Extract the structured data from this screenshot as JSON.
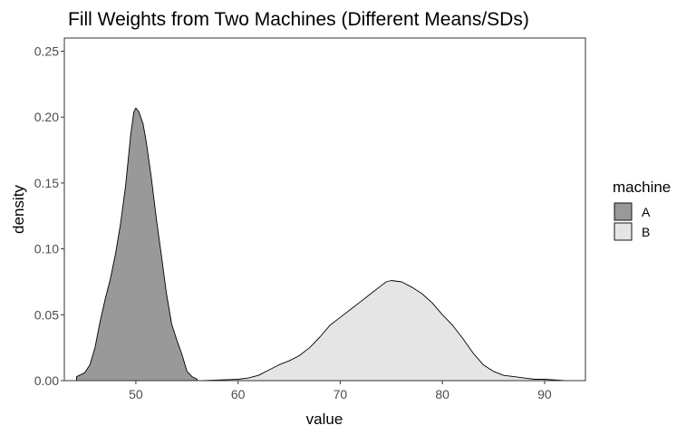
{
  "chart_data": {
    "type": "area",
    "title": "Fill Weights from Two Machines (Different Means/SDs)",
    "xlabel": "value",
    "ylabel": "density",
    "xlim": [
      43.0,
      94.0
    ],
    "ylim": [
      0.0,
      0.26
    ],
    "x_ticks": [
      50,
      60,
      70,
      80,
      90
    ],
    "x_tick_labels": [
      "50",
      "60",
      "70",
      "80",
      "90"
    ],
    "y_ticks": [
      0.0,
      0.05,
      0.1,
      0.15,
      0.2,
      0.25
    ],
    "y_tick_labels": [
      "0.00",
      "0.05",
      "0.10",
      "0.15",
      "0.20",
      "0.25"
    ],
    "grid": false,
    "legend": {
      "title": "machine",
      "position": "right"
    },
    "series": [
      {
        "name": "A",
        "fill": "#999999",
        "points": [
          [
            44.2,
            0.003
          ],
          [
            45.0,
            0.006
          ],
          [
            45.5,
            0.012
          ],
          [
            46.0,
            0.025
          ],
          [
            46.5,
            0.045
          ],
          [
            47.0,
            0.062
          ],
          [
            47.5,
            0.077
          ],
          [
            48.0,
            0.096
          ],
          [
            48.5,
            0.119
          ],
          [
            49.0,
            0.148
          ],
          [
            49.5,
            0.187
          ],
          [
            49.8,
            0.204
          ],
          [
            50.0,
            0.207
          ],
          [
            50.3,
            0.204
          ],
          [
            50.7,
            0.195
          ],
          [
            51.0,
            0.182
          ],
          [
            51.5,
            0.155
          ],
          [
            52.0,
            0.123
          ],
          [
            52.5,
            0.095
          ],
          [
            53.0,
            0.066
          ],
          [
            53.5,
            0.043
          ],
          [
            54.0,
            0.031
          ],
          [
            54.5,
            0.02
          ],
          [
            55.0,
            0.007
          ],
          [
            55.5,
            0.003
          ],
          [
            56.0,
            0.001
          ]
        ]
      },
      {
        "name": "B",
        "fill": "#e5e5e5",
        "points": [
          [
            56.5,
            0.0
          ],
          [
            58.0,
            0.0005
          ],
          [
            60.0,
            0.001
          ],
          [
            61.0,
            0.002
          ],
          [
            62.0,
            0.004
          ],
          [
            63.0,
            0.008
          ],
          [
            64.0,
            0.012
          ],
          [
            65.0,
            0.015
          ],
          [
            66.0,
            0.019
          ],
          [
            67.0,
            0.025
          ],
          [
            68.0,
            0.033
          ],
          [
            69.0,
            0.042
          ],
          [
            70.0,
            0.048
          ],
          [
            71.0,
            0.054
          ],
          [
            72.0,
            0.06
          ],
          [
            73.0,
            0.066
          ],
          [
            74.0,
            0.072
          ],
          [
            74.5,
            0.075
          ],
          [
            75.0,
            0.076
          ],
          [
            76.0,
            0.075
          ],
          [
            77.0,
            0.071
          ],
          [
            78.0,
            0.066
          ],
          [
            79.0,
            0.059
          ],
          [
            80.0,
            0.05
          ],
          [
            81.0,
            0.042
          ],
          [
            82.0,
            0.032
          ],
          [
            83.0,
            0.021
          ],
          [
            84.0,
            0.012
          ],
          [
            85.0,
            0.007
          ],
          [
            86.0,
            0.004
          ],
          [
            87.0,
            0.003
          ],
          [
            88.0,
            0.002
          ],
          [
            89.0,
            0.001
          ],
          [
            90.0,
            0.001
          ],
          [
            92.0,
            0.0
          ]
        ]
      }
    ]
  }
}
